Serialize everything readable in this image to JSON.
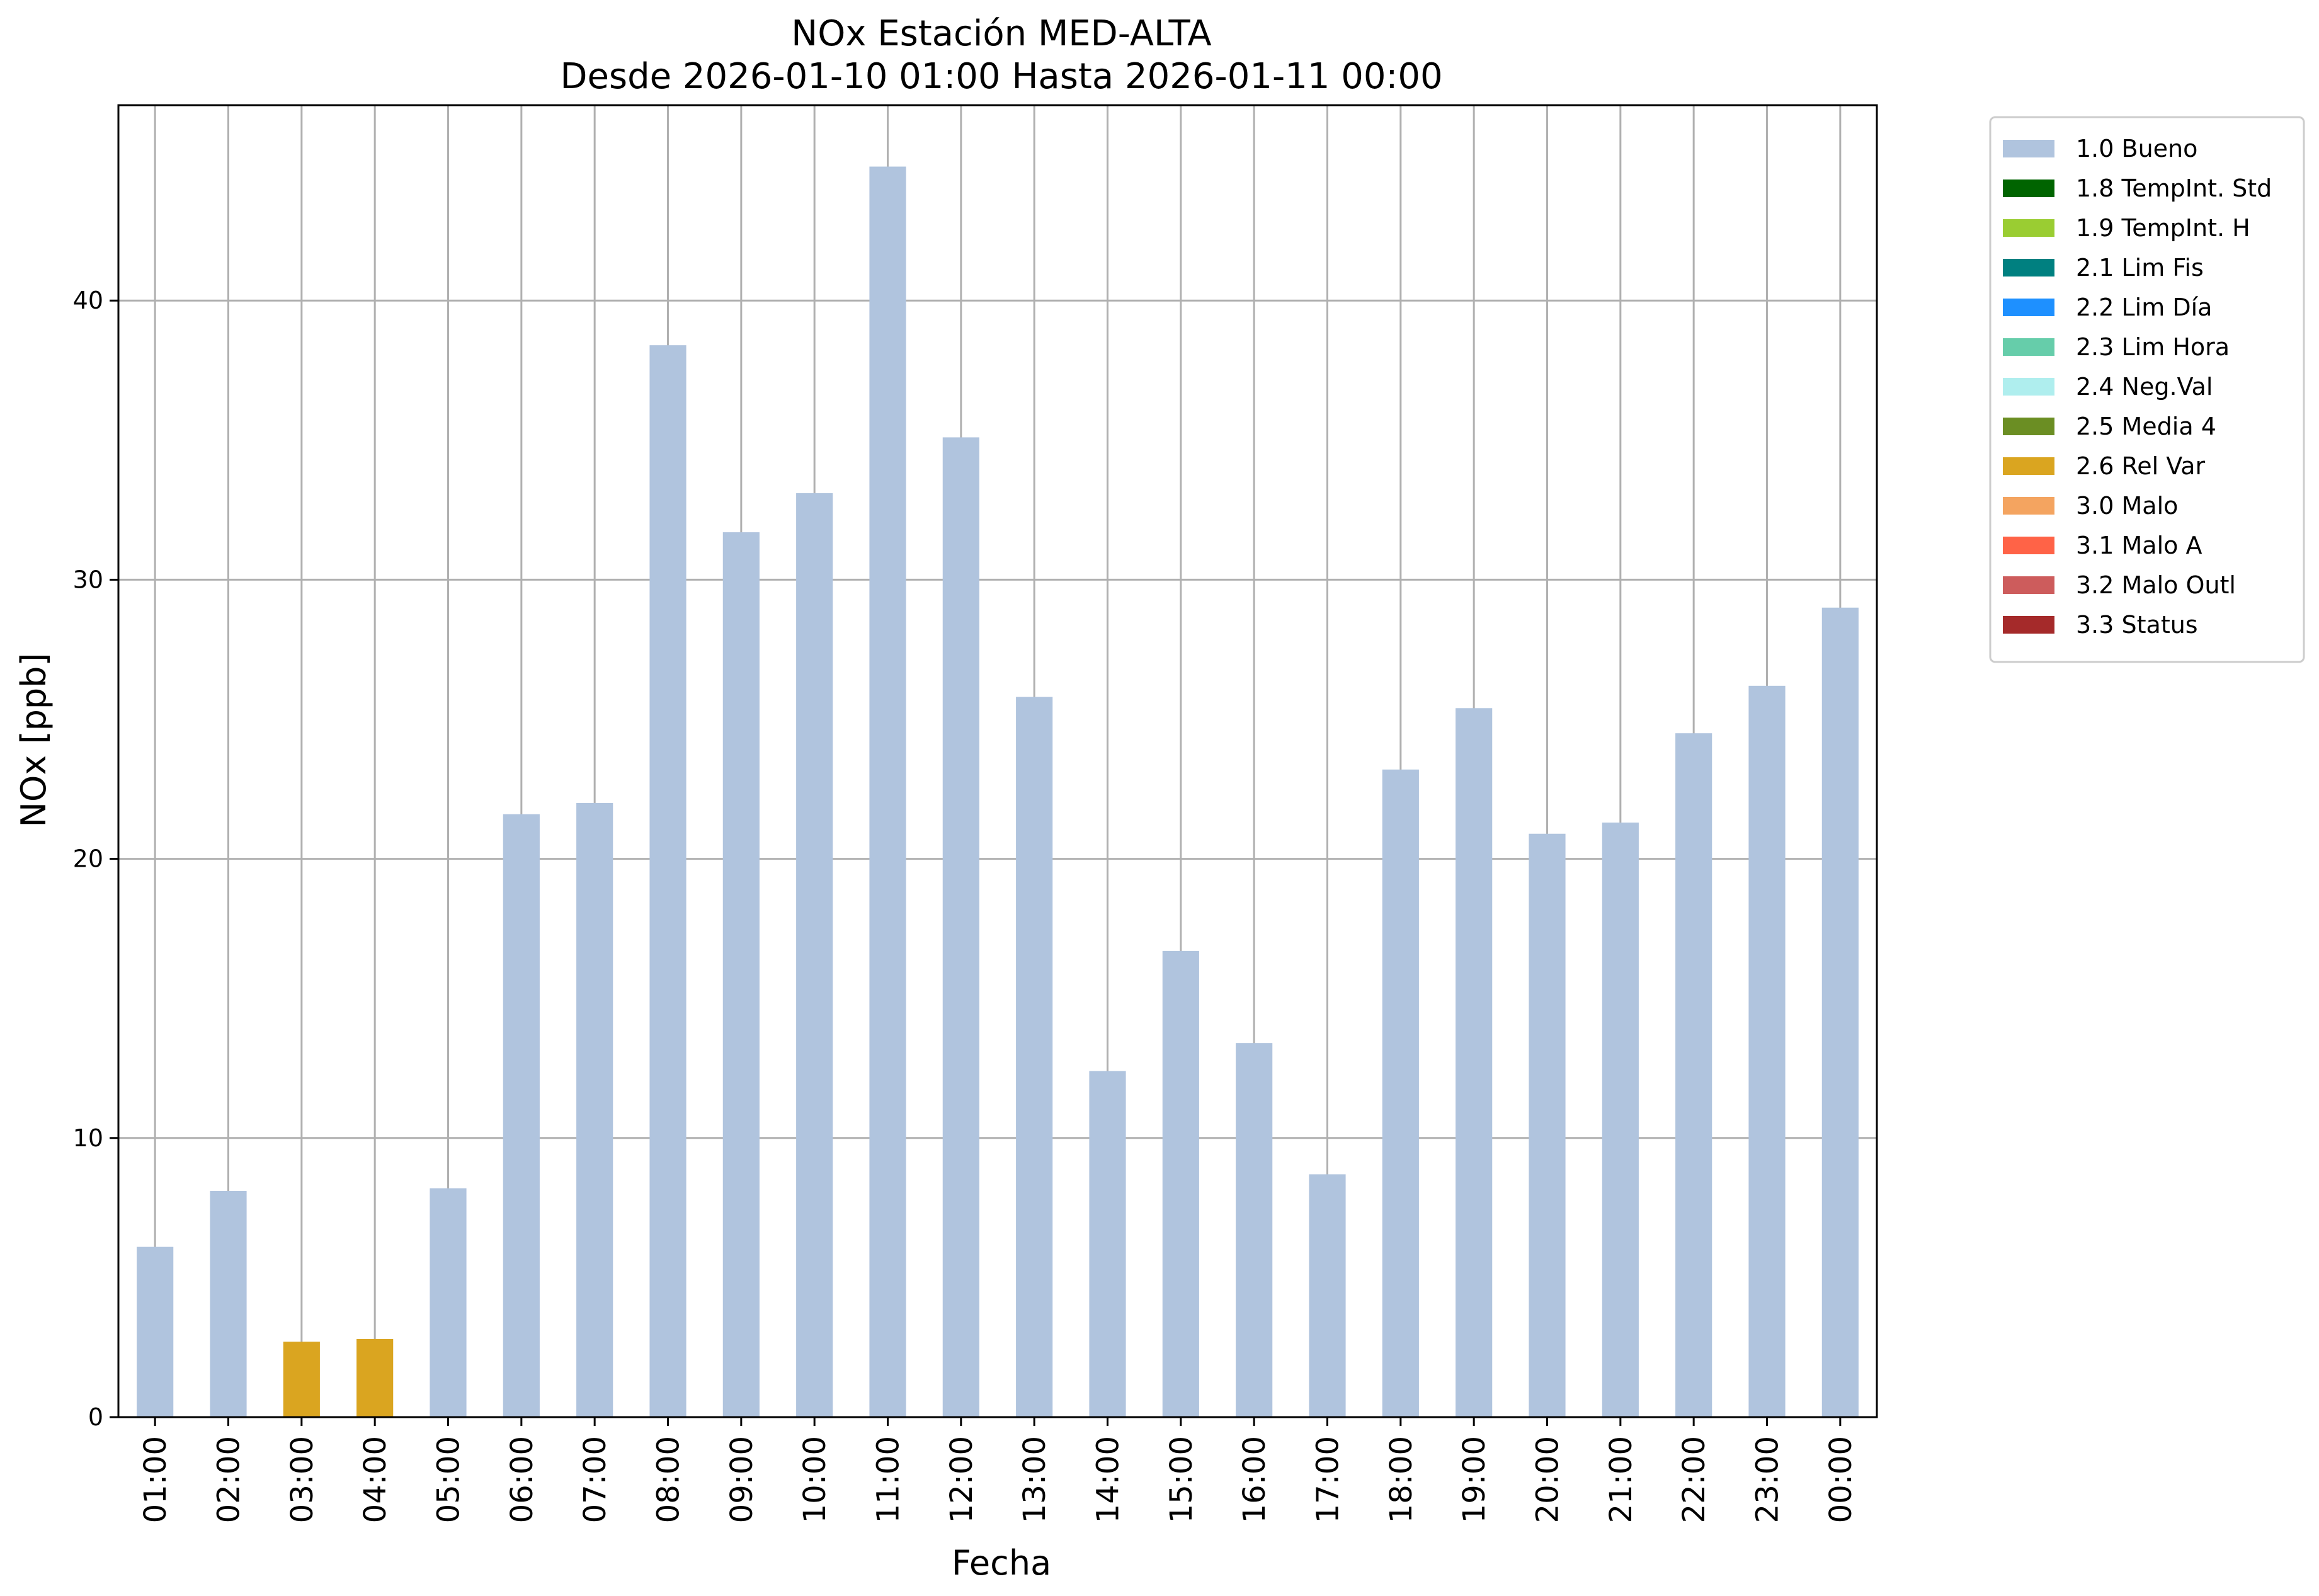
{
  "chart_data": {
    "type": "bar",
    "title": "NOx Estación MED-ALTA",
    "subtitle": "Desde 2026-01-10 01:00 Hasta 2026-01-11 00:00",
    "xlabel": "Fecha",
    "ylabel": "NOx [ppb]",
    "ylim": [
      0,
      47
    ],
    "yticks": [
      0,
      10,
      20,
      30,
      40
    ],
    "grid": true,
    "legend_position": "outside-top-right",
    "categories": [
      "01:00",
      "02:00",
      "03:00",
      "04:00",
      "05:00",
      "06:00",
      "07:00",
      "08:00",
      "09:00",
      "10:00",
      "11:00",
      "12:00",
      "13:00",
      "14:00",
      "15:00",
      "16:00",
      "17:00",
      "18:00",
      "19:00",
      "20:00",
      "21:00",
      "22:00",
      "23:00",
      "00:00"
    ],
    "values": [
      6.1,
      8.1,
      2.7,
      2.8,
      8.2,
      21.6,
      22.0,
      38.4,
      31.7,
      33.1,
      44.8,
      35.1,
      25.8,
      12.4,
      16.7,
      13.4,
      8.7,
      23.2,
      25.4,
      20.9,
      21.3,
      24.5,
      26.2,
      29.0
    ],
    "bar_flags": [
      "1.0 Bueno",
      "1.0 Bueno",
      "2.6 Rel Var",
      "2.6 Rel Var",
      "1.0 Bueno",
      "1.0 Bueno",
      "1.0 Bueno",
      "1.0 Bueno",
      "1.0 Bueno",
      "1.0 Bueno",
      "1.0 Bueno",
      "1.0 Bueno",
      "1.0 Bueno",
      "1.0 Bueno",
      "1.0 Bueno",
      "1.0 Bueno",
      "1.0 Bueno",
      "1.0 Bueno",
      "1.0 Bueno",
      "1.0 Bueno",
      "1.0 Bueno",
      "1.0 Bueno",
      "1.0 Bueno",
      "1.0 Bueno"
    ],
    "legend": [
      {
        "name": "1.0 Bueno",
        "color": "#b0c4de"
      },
      {
        "name": "1.8 TempInt. Std",
        "color": "#006400"
      },
      {
        "name": "1.9 TempInt. H",
        "color": "#9acd32"
      },
      {
        "name": "2.1 Lim Fis",
        "color": "#008080"
      },
      {
        "name": "2.2 Lim Día",
        "color": "#1e90ff"
      },
      {
        "name": "2.3 Lim Hora",
        "color": "#66cdaa"
      },
      {
        "name": "2.4 Neg.Val",
        "color": "#afeeee"
      },
      {
        "name": "2.5 Media 4",
        "color": "#6b8e23"
      },
      {
        "name": "2.6 Rel Var",
        "color": "#daa520"
      },
      {
        "name": "3.0 Malo",
        "color": "#f4a460"
      },
      {
        "name": "3.1 Malo A",
        "color": "#ff6347"
      },
      {
        "name": "3.2 Malo Outl",
        "color": "#cd5c5c"
      },
      {
        "name": "3.3 Status",
        "color": "#a52a2a"
      }
    ]
  }
}
